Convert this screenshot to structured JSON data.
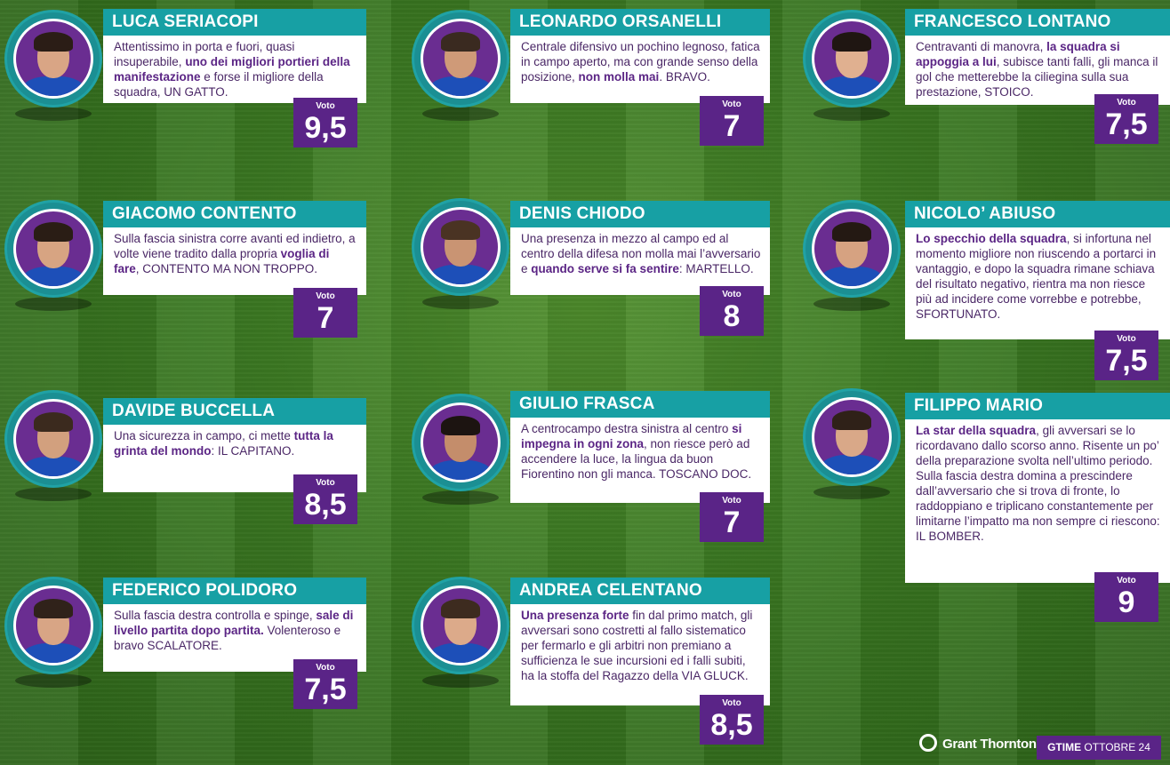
{
  "players": [
    {
      "name": "LUCA SERIACOPI",
      "segments": [
        {
          "t": "Attentissimo in porta e fuori, quasi insuperabile, ",
          "b": false
        },
        {
          "t": "uno dei migliori portieri della manifestazione",
          "b": true
        },
        {
          "t": " e forse il migliore della squadra, UN GATTO.",
          "b": false
        }
      ],
      "vote_label": "Voto",
      "vote": "9,5"
    },
    {
      "name": "LEONARDO ORSANELLI",
      "segments": [
        {
          "t": "Centrale difensivo un pochino legnoso, fatica in campo aperto, ma con grande senso della posizione, ",
          "b": false
        },
        {
          "t": "non molla mai",
          "b": true
        },
        {
          "t": ". BRAVO.",
          "b": false
        }
      ],
      "vote_label": "Voto",
      "vote": "7"
    },
    {
      "name": "FRANCESCO LONTANO",
      "segments": [
        {
          "t": "Centravanti di manovra, ",
          "b": false
        },
        {
          "t": "la squadra si appoggia a lui",
          "b": true
        },
        {
          "t": ", subisce tanti falli, gli manca il gol che metterebbe la ciliegina sulla sua prestazione, STOICO.",
          "b": false
        }
      ],
      "vote_label": "Voto",
      "vote": "7,5"
    },
    {
      "name": "GIACOMO CONTENTO",
      "segments": [
        {
          "t": "Sulla fascia sinistra corre avanti ed indietro, a volte viene tradito dalla propria ",
          "b": false
        },
        {
          "t": "voglia di fare",
          "b": true
        },
        {
          "t": ", CONTENTO MA NON TROPPO.",
          "b": false
        }
      ],
      "vote_label": "Voto",
      "vote": "7"
    },
    {
      "name": "DENIS CHIODO",
      "segments": [
        {
          "t": "Una presenza in mezzo al campo ed al centro della difesa non molla mai l’avversario e ",
          "b": false
        },
        {
          "t": "quando serve si fa sentire",
          "b": true
        },
        {
          "t": ": MARTELLO.",
          "b": false
        }
      ],
      "vote_label": "Voto",
      "vote": "8"
    },
    {
      "name": "NICOLO’ ABIUSO",
      "segments": [
        {
          "t": "Lo specchio della squadra",
          "b": true
        },
        {
          "t": ", si infortuna nel momento migliore non riuscendo a portarci in vantaggio, e dopo la squadra rimane schiava del risultato negativo, rientra ma non riesce più ad incidere come vorrebbe e potrebbe, SFORTUNATO.",
          "b": false
        }
      ],
      "vote_label": "Voto",
      "vote": "7,5"
    },
    {
      "name": "DAVIDE BUCCELLA",
      "segments": [
        {
          "t": "Una sicurezza in campo, ci mette ",
          "b": false
        },
        {
          "t": "tutta la grinta del mondo",
          "b": true
        },
        {
          "t": ": IL CAPITANO.",
          "b": false
        }
      ],
      "vote_label": "Voto",
      "vote": "8,5"
    },
    {
      "name": "GIULIO FRASCA",
      "segments": [
        {
          "t": "A centrocampo destra sinistra al centro ",
          "b": false
        },
        {
          "t": "si impegna in ogni zona",
          "b": true
        },
        {
          "t": ", non riesce però ad accendere la luce, la lingua da buon Fiorentino non gli manca. TOSCANO DOC.",
          "b": false
        }
      ],
      "vote_label": "Voto",
      "vote": "7"
    },
    {
      "name": "FILIPPO MARIO",
      "segments": [
        {
          "t": "La star della squadra",
          "b": true
        },
        {
          "t": ", gli avversari se lo ricordavano dallo scorso anno. Risente un po’ della preparazione svolta nell’ultimo periodo. Sulla fascia destra domina a prescindere dall’avversario che si trova di fronte, lo raddoppiano e triplicano constantemente per limitarne l’impatto ma non sempre ci riescono: IL BOMBER.",
          "b": false
        }
      ],
      "vote_label": "Voto",
      "vote": "9"
    },
    {
      "name": "FEDERICO POLIDORO",
      "segments": [
        {
          "t": "Sulla fascia destra controlla e spinge, ",
          "b": false
        },
        {
          "t": "sale di livello partita dopo partita.",
          "b": true
        },
        {
          "t": " Volenteroso e bravo SCALATORE.",
          "b": false
        }
      ],
      "vote_label": "Voto",
      "vote": "7,5"
    },
    {
      "name": "ANDREA CELENTANO",
      "segments": [
        {
          "t": "Una presenza forte",
          "b": true
        },
        {
          "t": " fin dal primo match, gli avversari sono costretti al fallo sistematico per fermarlo e gli arbitri non premiano a sufficienza le sue incursioni ed i falli subiti, ha la stoffa del Ragazzo della VIA GLUCK.",
          "b": false
        }
      ],
      "vote_label": "Voto",
      "vote": "8,5"
    }
  ],
  "footer": {
    "brand": "Grant Thornton",
    "tag_bold": "GTIME",
    "tag_rest": " OTTOBRE 24"
  },
  "colors": {
    "teal": "#17a0a4",
    "purple": "#5a2487",
    "text": "#4a2766"
  }
}
